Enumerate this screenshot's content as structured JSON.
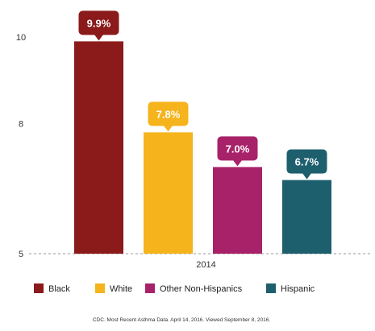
{
  "chart_data": {
    "type": "bar",
    "categories": [
      "2014"
    ],
    "series": [
      {
        "name": "Black",
        "values": [
          9.9
        ],
        "label": "9.9%",
        "color": "#8b1a1a"
      },
      {
        "name": "White",
        "values": [
          7.8
        ],
        "label": "7.8%",
        "color": "#f5b41c"
      },
      {
        "name": "Other Non-Hispanics",
        "values": [
          7.0
        ],
        "label": "7.0%",
        "color": "#a8226a"
      },
      {
        "name": "Hispanic",
        "values": [
          6.7
        ],
        "label": "6.7%",
        "color": "#1e5f6e"
      }
    ],
    "yticks": [
      5,
      8,
      10
    ],
    "ylim": [
      5,
      10.4
    ],
    "grid": false,
    "legend_position": "bottom"
  },
  "source": "CDC. Most Recent Asthma Data. April 14, 2016. Viewed September 8, 2016."
}
